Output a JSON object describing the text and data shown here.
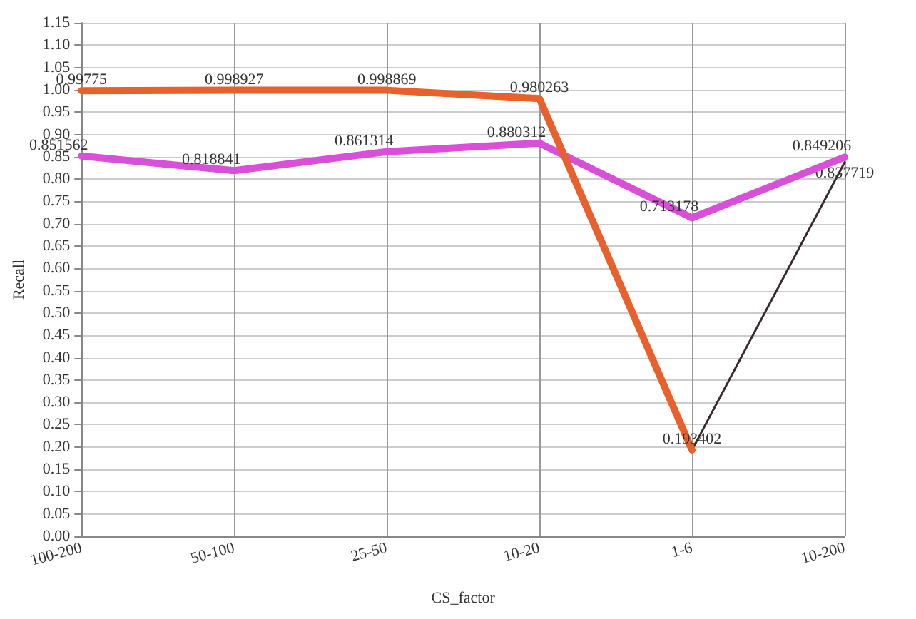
{
  "chart_data": {
    "type": "line",
    "xlabel": "CS_factor",
    "ylabel": "Recall",
    "categories": [
      "100-200",
      "50-100",
      "25-50",
      "10-20",
      "1-6",
      "10-200"
    ],
    "series": [
      {
        "color": "#e8612c",
        "values": [
          0.99775,
          0.998927,
          0.998869,
          0.980263,
          0.193402,
          null
        ],
        "value_labels": [
          "0.99775",
          "0.998927",
          "0.998869",
          "0.980263",
          "0.193402",
          null
        ]
      },
      {
        "color": "#d94fd9",
        "values": [
          0.851562,
          0.818841,
          0.861314,
          0.880312,
          0.713178,
          0.849206
        ],
        "value_labels": [
          "0.851562",
          "0.818841",
          "0.861314",
          "0.880312",
          "0.713178",
          "0.849206"
        ]
      },
      {
        "color": "#3a2a2a",
        "values": [
          null,
          null,
          null,
          null,
          0.193402,
          0.837719
        ],
        "value_labels": [
          null,
          null,
          null,
          null,
          null,
          "0.837719"
        ]
      }
    ],
    "ylim": [
      0,
      1.15
    ],
    "yticks": [
      {
        "value": 0,
        "label": "0.00"
      },
      {
        "value": 0.05,
        "label": "0.05"
      },
      {
        "value": 0.1,
        "label": "0.10"
      },
      {
        "value": 0.15,
        "label": "0.15"
      },
      {
        "value": 0.2,
        "label": "0.20"
      },
      {
        "value": 0.25,
        "label": "0.25"
      },
      {
        "value": 0.3,
        "label": "0.30"
      },
      {
        "value": 0.35,
        "label": "0.35"
      },
      {
        "value": 0.4,
        "label": "0.40"
      },
      {
        "value": 0.45,
        "label": "0.45"
      },
      {
        "value": 0.5,
        "label": "0.50"
      },
      {
        "value": 0.55,
        "label": "0.55"
      },
      {
        "value": 0.6,
        "label": "0.60"
      },
      {
        "value": 0.65,
        "label": "0.65"
      },
      {
        "value": 0.7,
        "label": "0.70"
      },
      {
        "value": 0.75,
        "label": "0.75"
      },
      {
        "value": 0.8,
        "label": "0.80"
      },
      {
        "value": 0.85,
        "label": "0.85"
      },
      {
        "value": 0.9,
        "label": "0.90"
      },
      {
        "value": 0.95,
        "label": "0.95"
      },
      {
        "value": 1.0,
        "label": "1.00"
      },
      {
        "value": 1.05,
        "label": "1.05"
      },
      {
        "value": 1.1,
        "label": "1.10"
      },
      {
        "value": 1.15,
        "label": "1.15"
      }
    ],
    "grid": true,
    "marker": "none",
    "line_style": "solid"
  }
}
